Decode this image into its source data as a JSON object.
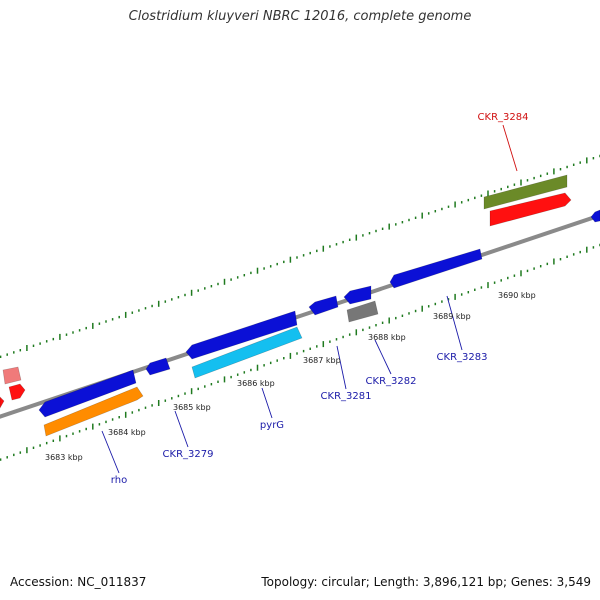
{
  "title": "Clostridium kluyveri NBRC 12016, complete genome",
  "footer": {
    "accession": "Accession: NC_011837",
    "summary": "Topology: circular; Length: 3,896,121 bp; Genes: 3,549"
  },
  "colors": {
    "backbone": "#8a8a8a",
    "tick": "#1f7a1f",
    "blue_gene": "#0b10d6",
    "orange_gene": "#ff8c00",
    "cyan_gene": "#14bff0",
    "olive_gene": "#6b8a28",
    "red_gene": "#ff1010",
    "pink_gene": "#f07a7a",
    "gray_gene": "#777777",
    "label_blue": "#1a1aa8",
    "label_red": "#d01010"
  },
  "scale_labels": [
    "3683 kbp",
    "3684 kbp",
    "3685 kbp",
    "3686 kbp",
    "3687 kbp",
    "3688 kbp",
    "3689 kbp",
    "3690 kbp"
  ],
  "gene_labels": [
    {
      "name": "rho",
      "color": "blue"
    },
    {
      "name": "CKR_3279",
      "color": "blue"
    },
    {
      "name": "pyrG",
      "color": "blue"
    },
    {
      "name": "CKR_3281",
      "color": "blue"
    },
    {
      "name": "CKR_3282",
      "color": "blue"
    },
    {
      "name": "CKR_3283",
      "color": "blue"
    },
    {
      "name": "CKR_3284",
      "color": "red"
    }
  ]
}
